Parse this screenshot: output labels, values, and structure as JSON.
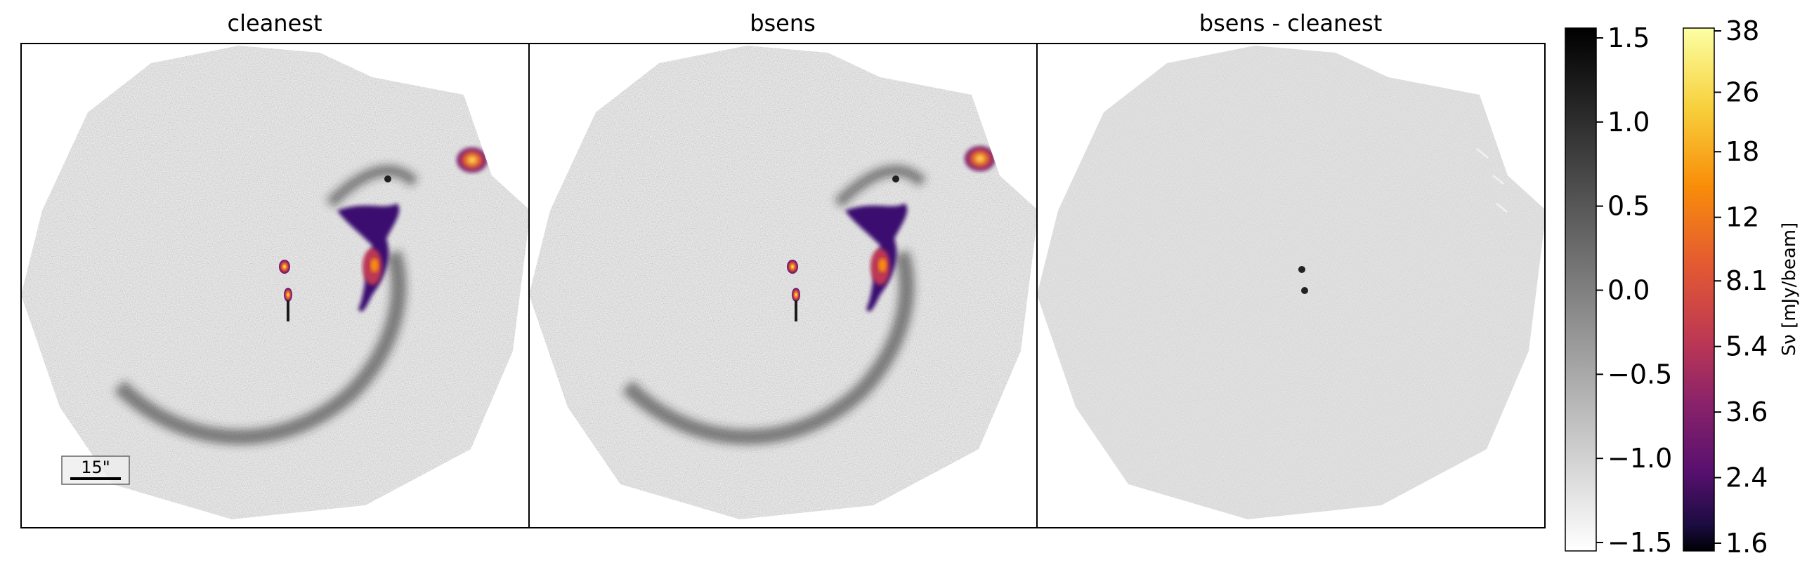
{
  "panels": [
    {
      "id": "cleanest",
      "title": "cleanest"
    },
    {
      "id": "bsens",
      "title": "bsens"
    },
    {
      "id": "diff",
      "title": "bsens - cleanest"
    }
  ],
  "scalebar": {
    "label": "15\""
  },
  "colorbar_gray": {
    "ticks": [
      "1.5",
      "1.0",
      "0.5",
      "0.0",
      "−0.5",
      "−1.0",
      "−1.5"
    ],
    "range": [
      -1.5,
      1.5
    ]
  },
  "colorbar_inferno": {
    "label": "Sν [mJy/beam]",
    "ticks": [
      "38",
      "26",
      "18",
      "12",
      "8.1",
      "5.4",
      "3.6",
      "2.4",
      "1.6"
    ]
  },
  "colors": {
    "inferno_top": "#fcffa4",
    "inferno_high": "#f98e09",
    "inferno_mid": "#bc3754",
    "inferno_low": "#57106e",
    "inferno_bottom": "#000004",
    "background_gray": "#808080"
  }
}
